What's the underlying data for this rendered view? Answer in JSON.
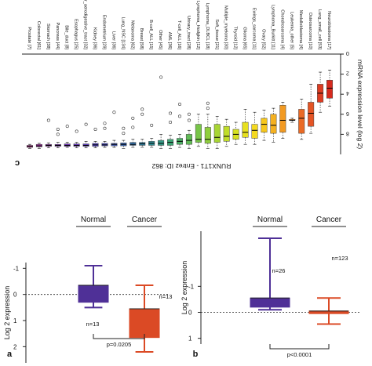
{
  "chart_data": [
    {
      "panel": "c",
      "type": "box",
      "ylabel": "mRNA expression level (log 2)",
      "xlabel": "RUNX1T1 - Entrez ID: 862",
      "ylim": [
        0,
        10
      ],
      "yticks": [
        "0",
        "2",
        "4",
        "6",
        "8"
      ],
      "categories": [
        "Neuroblastoma [17]",
        "Lung_small_cell [53]",
        "Osteosarcoma [10]",
        "Medulloblastoma [4]",
        "Leukemia_other [5]",
        "Chondrosarcoma [4]",
        "Lymphoma_Burkitt [11]",
        "Ovary [52]",
        "Ewings_sarcoma [11]",
        "Glioma [65]",
        "Thyroid [12]",
        "Multiple_myeloma [30]",
        "Soft_tissue [21]",
        "Lymphoma_DLBCL [18]",
        "Lymphoma_Hodgkin [12]",
        "Urinary_tract [28]",
        "T-cell_ALL [16]",
        "AML [36]",
        "Other [45]",
        "B-cell_ALL [15]",
        "Breast [58]",
        "Melanoma [62]",
        "Lung_NSC [134]",
        "Liver [36]",
        "Endometrium [29]",
        "Kidney [36]",
        "Upper_aerodigestive_tract [32]",
        "Esophagus [25]",
        "Bile_duct [8]",
        "Pancreas [44]",
        "Stomach [38]",
        "Colorectal [61]",
        "Prostate [7]"
      ],
      "colors": [
        "#d62a1e",
        "#dd3c22",
        "#e55424",
        "#ea6a25",
        "#ef8223",
        "#f29a22",
        "#f5b120",
        "#f7c71c",
        "#f4d91f",
        "#e7e01f",
        "#d6e123",
        "#c0dd2a",
        "#a8d633",
        "#8fce3d",
        "#77c548",
        "#60bb56",
        "#4cb066",
        "#3ea576",
        "#359a86",
        "#318e95",
        "#3382a3",
        "#3876ae",
        "#3e6ab7",
        "#455dbd",
        "#4c51c0",
        "#5446c1",
        "#5c3ebf",
        "#6537bb",
        "#6e31b6",
        "#7a2db0",
        "#8a2ba7",
        "#9c2b9c",
        "#b02c8e"
      ],
      "boxes": [
        {
          "min": 1.6,
          "q1": 2.6,
          "median": 3.4,
          "q3": 4.4,
          "max": 5.2
        },
        {
          "min": 1.8,
          "q1": 3.0,
          "median": 3.9,
          "q3": 4.8,
          "max": 5.8
        },
        {
          "min": 3.0,
          "q1": 4.8,
          "median": 5.9,
          "q3": 7.2,
          "max": 7.9
        },
        {
          "min": 4.5,
          "q1": 5.5,
          "median": 6.4,
          "q3": 7.9,
          "max": 8.5
        },
        {
          "min": 6.4,
          "q1": 6.6,
          "median": 6.6,
          "q3": 6.6,
          "max": 6.8
        },
        {
          "min": 4.8,
          "q1": 5.1,
          "median": 6.6,
          "q3": 7.8,
          "max": 8.4
        },
        {
          "min": 5.4,
          "q1": 6.0,
          "median": 7.1,
          "q3": 7.9,
          "max": 8.8
        },
        {
          "min": 5.6,
          "q1": 6.4,
          "median": 7.0,
          "q3": 7.8,
          "max": 8.6
        },
        {
          "min": 5.8,
          "q1": 7.0,
          "median": 7.6,
          "q3": 8.4,
          "max": 9.0
        },
        {
          "min": 5.5,
          "q1": 6.8,
          "median": 7.8,
          "q3": 8.3,
          "max": 9.0
        },
        {
          "min": 6.8,
          "q1": 7.5,
          "median": 8.0,
          "q3": 8.5,
          "max": 9.0
        },
        {
          "min": 6.5,
          "q1": 7.2,
          "median": 8.2,
          "q3": 8.7,
          "max": 9.2
        },
        {
          "min": 6.2,
          "q1": 7.0,
          "median": 8.3,
          "q3": 8.8,
          "max": 9.4
        },
        {
          "min": 6.0,
          "q1": 7.3,
          "median": 8.5,
          "q3": 8.9,
          "max": 9.4
        },
        {
          "min": 6.0,
          "q1": 7.0,
          "median": 8.5,
          "q3": 8.8,
          "max": 9.2
        },
        {
          "min": 7.6,
          "q1": 8.0,
          "median": 8.6,
          "q3": 9.0,
          "max": 9.4
        },
        {
          "min": 8.0,
          "q1": 8.4,
          "median": 8.7,
          "q3": 9.0,
          "max": 9.3
        },
        {
          "min": 8.1,
          "q1": 8.5,
          "median": 8.8,
          "q3": 9.1,
          "max": 9.4
        },
        {
          "min": 8.0,
          "q1": 8.6,
          "median": 8.9,
          "q3": 9.1,
          "max": 9.4
        },
        {
          "min": 8.4,
          "q1": 8.7,
          "median": 8.9,
          "q3": 9.1,
          "max": 9.3
        },
        {
          "min": 8.5,
          "q1": 8.8,
          "median": 8.95,
          "q3": 9.1,
          "max": 9.3
        },
        {
          "min": 8.5,
          "q1": 8.8,
          "median": 9.0,
          "q3": 9.1,
          "max": 9.3
        },
        {
          "min": 8.6,
          "q1": 8.85,
          "median": 9.0,
          "q3": 9.15,
          "max": 9.4
        },
        {
          "min": 8.6,
          "q1": 8.9,
          "median": 9.0,
          "q3": 9.15,
          "max": 9.3
        },
        {
          "min": 8.7,
          "q1": 8.9,
          "median": 9.05,
          "q3": 9.15,
          "max": 9.3
        },
        {
          "min": 8.7,
          "q1": 8.9,
          "median": 9.05,
          "q3": 9.2,
          "max": 9.35
        },
        {
          "min": 8.7,
          "q1": 8.95,
          "median": 9.1,
          "q3": 9.2,
          "max": 9.35
        },
        {
          "min": 8.8,
          "q1": 8.95,
          "median": 9.1,
          "q3": 9.2,
          "max": 9.35
        },
        {
          "min": 8.8,
          "q1": 8.95,
          "median": 9.1,
          "q3": 9.2,
          "max": 9.3
        },
        {
          "min": 8.8,
          "q1": 9.0,
          "median": 9.1,
          "q3": 9.2,
          "max": 9.35
        },
        {
          "min": 8.85,
          "q1": 9.0,
          "median": 9.1,
          "q3": 9.2,
          "max": 9.35
        },
        {
          "min": 8.9,
          "q1": 9.0,
          "median": 9.15,
          "q3": 9.25,
          "max": 9.4
        },
        {
          "min": 9.0,
          "q1": 9.1,
          "median": 9.2,
          "q3": 9.3,
          "max": 9.4
        }
      ],
      "outliers": [
        {
          "i": 13,
          "y": 5.4
        },
        {
          "i": 13,
          "y": 4.9
        },
        {
          "i": 15,
          "y": 6.6
        },
        {
          "i": 15,
          "y": 6.0
        },
        {
          "i": 16,
          "y": 6.2
        },
        {
          "i": 16,
          "y": 5.0
        },
        {
          "i": 17,
          "y": 6.8
        },
        {
          "i": 17,
          "y": 5.9
        },
        {
          "i": 18,
          "y": 2.3
        },
        {
          "i": 19,
          "y": 7.1
        },
        {
          "i": 20,
          "y": 6.0
        },
        {
          "i": 20,
          "y": 5.5
        },
        {
          "i": 21,
          "y": 7.3
        },
        {
          "i": 21,
          "y": 6.4
        },
        {
          "i": 22,
          "y": 7.9
        },
        {
          "i": 22,
          "y": 7.4
        },
        {
          "i": 23,
          "y": 5.8
        },
        {
          "i": 24,
          "y": 7.4
        },
        {
          "i": 24,
          "y": 6.9
        },
        {
          "i": 25,
          "y": 7.5
        },
        {
          "i": 26,
          "y": 7.0
        },
        {
          "i": 27,
          "y": 7.7
        },
        {
          "i": 28,
          "y": 7.2
        },
        {
          "i": 29,
          "y": 8.0
        },
        {
          "i": 29,
          "y": 7.5
        },
        {
          "i": 30,
          "y": 6.6
        }
      ]
    },
    {
      "panel": "a",
      "type": "box",
      "ylabel": "Log 2 expression",
      "categories": [
        "Normal",
        "Cancer"
      ],
      "ylim": [
        -2.5,
        1.1
      ],
      "yticks": [
        "-1",
        "0",
        "1",
        "2"
      ],
      "colors": [
        "#4f3097",
        "#db4a25"
      ],
      "boxes": [
        {
          "min": -0.5,
          "q1": -0.3,
          "median": 0.35,
          "q3": 0.35,
          "max": 1.1,
          "n_label": "n=13"
        },
        {
          "min": -2.2,
          "q1": -1.65,
          "median": -0.55,
          "q3": -0.55,
          "max": 0.35,
          "n_label": "n=13"
        }
      ],
      "pvalue": "p=0.0205"
    },
    {
      "panel": "b",
      "type": "box",
      "ylabel": "Log 2 expression",
      "categories": [
        "Normal",
        "Cancer"
      ],
      "ylim": [
        -1.1,
        3.0
      ],
      "yticks": [
        "-1",
        "0",
        "1",
        "2",
        "3"
      ],
      "colors": [
        "#4f3097",
        "#db4a25"
      ],
      "boxes": [
        {
          "min": 0.1,
          "q1": 0.2,
          "median": 0.55,
          "q3": 0.55,
          "max": 2.85,
          "n_label": "n=26"
        },
        {
          "min": -0.45,
          "q1": -0.05,
          "median": 0.05,
          "q3": 0.05,
          "max": 0.55,
          "n_label": "n=123"
        }
      ],
      "pvalue": "p<0.0001"
    }
  ]
}
